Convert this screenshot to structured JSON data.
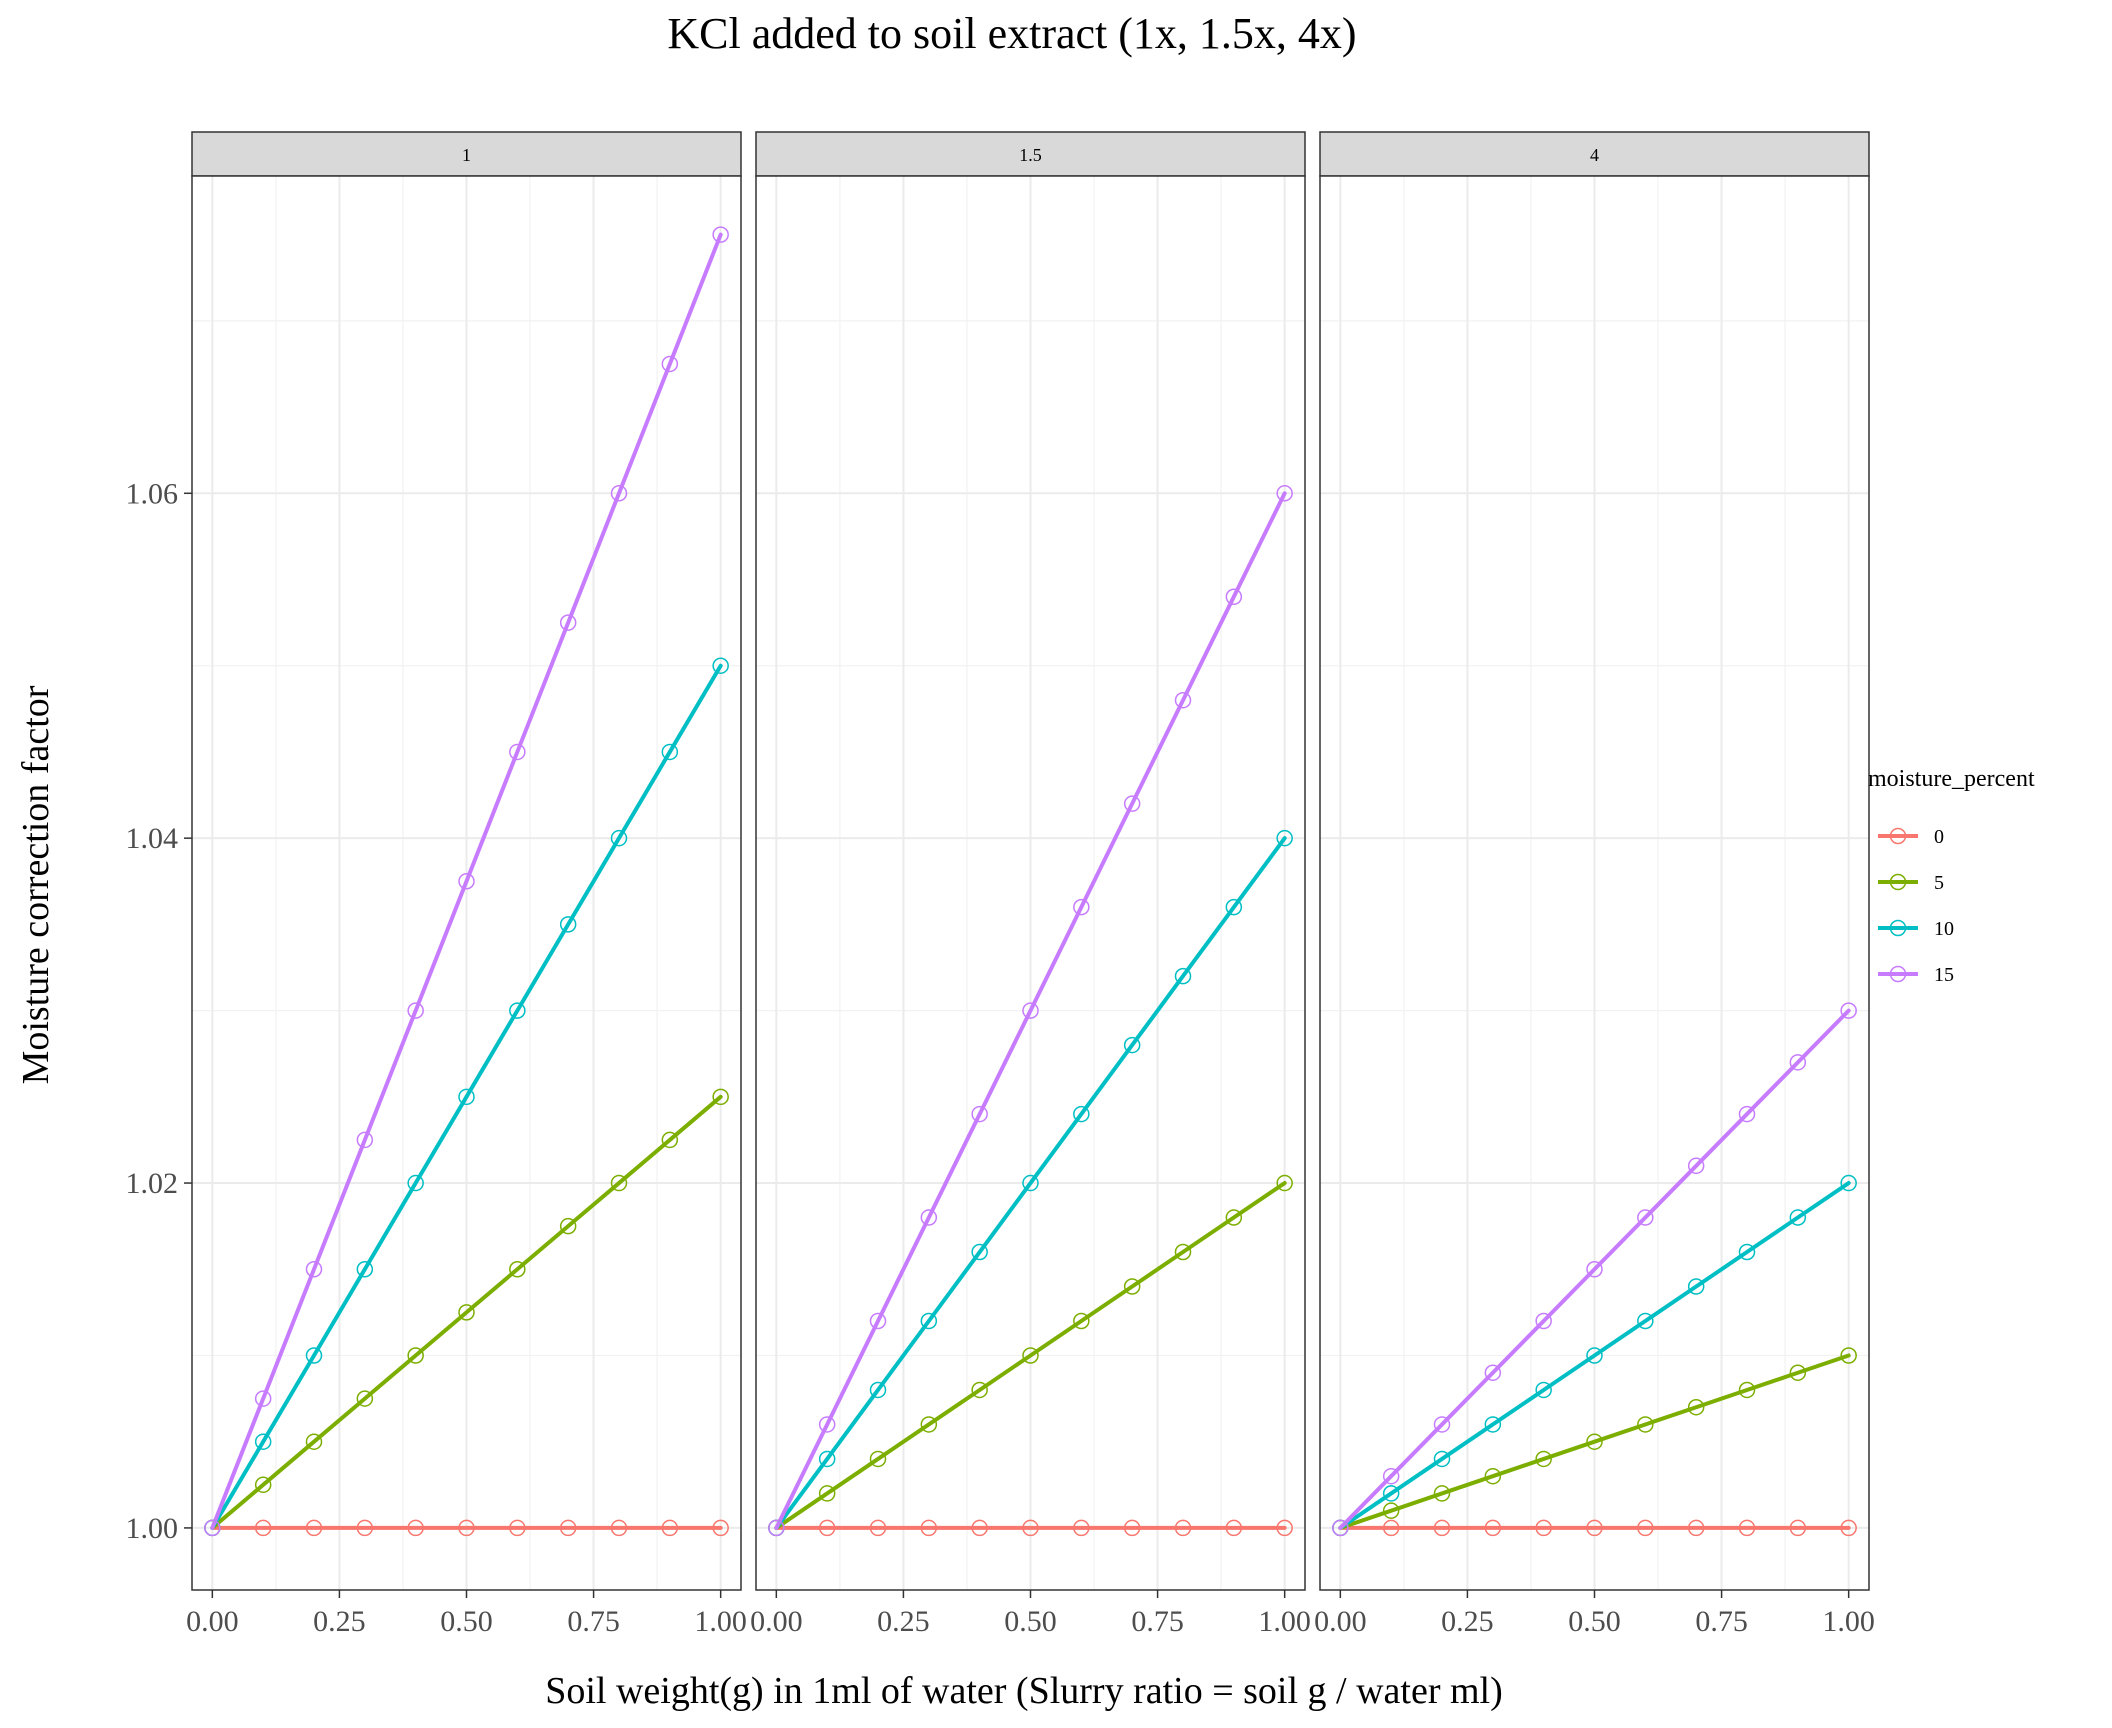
{
  "chart_data": {
    "type": "line",
    "title": "KCl added to soil extract (1x, 1.5x, 4x)",
    "xlabel": "Soil weight(g) in 1ml of water (Slurry ratio = soil g / water ml)",
    "ylabel": "Moisture correction factor",
    "x": [
      0,
      0.1,
      0.2,
      0.3,
      0.4,
      0.5,
      0.6,
      0.7,
      0.8,
      0.9,
      1.0
    ],
    "xlim": [
      -0.04,
      1.04
    ],
    "ylim": [
      0.9964,
      1.0784
    ],
    "x_ticks": [
      "0.00",
      "0.25",
      "0.50",
      "0.75",
      "1.00"
    ],
    "x_tick_values": [
      0,
      0.25,
      0.5,
      0.75,
      1.0
    ],
    "y_ticks": [
      "1.00",
      "1.02",
      "1.04",
      "1.06"
    ],
    "y_tick_values": [
      1.0,
      1.02,
      1.04,
      1.06
    ],
    "grid": true,
    "legend": {
      "title": "moisture_percent",
      "placement": "right",
      "entries": [
        "0",
        "5",
        "10",
        "15"
      ]
    },
    "colors": {
      "0": "#F8766D",
      "5": "#7CAE00",
      "10": "#00BFC4",
      "15": "#C77CFF"
    },
    "facets": [
      {
        "label": "1",
        "series": [
          {
            "name": "0",
            "values": [
              1,
              1,
              1,
              1,
              1,
              1,
              1,
              1,
              1,
              1,
              1
            ]
          },
          {
            "name": "5",
            "values": [
              1,
              1.0025,
              1.005,
              1.0075,
              1.01,
              1.0125,
              1.015,
              1.0175,
              1.02,
              1.0225,
              1.025
            ]
          },
          {
            "name": "10",
            "values": [
              1,
              1.005,
              1.01,
              1.015,
              1.02,
              1.025,
              1.03,
              1.035,
              1.04,
              1.045,
              1.05
            ]
          },
          {
            "name": "15",
            "values": [
              1,
              1.0075,
              1.015,
              1.0225,
              1.03,
              1.0375,
              1.045,
              1.0525,
              1.06,
              1.0675,
              1.075
            ]
          }
        ]
      },
      {
        "label": "1.5",
        "series": [
          {
            "name": "0",
            "values": [
              1,
              1,
              1,
              1,
              1,
              1,
              1,
              1,
              1,
              1,
              1
            ]
          },
          {
            "name": "5",
            "values": [
              1,
              1.002,
              1.004,
              1.006,
              1.008,
              1.01,
              1.012,
              1.014,
              1.016,
              1.018,
              1.02
            ]
          },
          {
            "name": "10",
            "values": [
              1,
              1.004,
              1.008,
              1.012,
              1.016,
              1.02,
              1.024,
              1.028,
              1.032,
              1.036,
              1.04
            ]
          },
          {
            "name": "15",
            "values": [
              1,
              1.006,
              1.012,
              1.018,
              1.024,
              1.03,
              1.036,
              1.042,
              1.048,
              1.054,
              1.06
            ]
          }
        ]
      },
      {
        "label": "4",
        "series": [
          {
            "name": "0",
            "values": [
              1,
              1,
              1,
              1,
              1,
              1,
              1,
              1,
              1,
              1,
              1
            ]
          },
          {
            "name": "5",
            "values": [
              1,
              1.001,
              1.002,
              1.003,
              1.004,
              1.005,
              1.006,
              1.007,
              1.008,
              1.009,
              1.01
            ]
          },
          {
            "name": "10",
            "values": [
              1,
              1.002,
              1.004,
              1.006,
              1.008,
              1.01,
              1.012,
              1.014,
              1.016,
              1.018,
              1.02
            ]
          },
          {
            "name": "15",
            "values": [
              1,
              1.003,
              1.006,
              1.009,
              1.012,
              1.015,
              1.018,
              1.021,
              1.024,
              1.027,
              1.03
            ]
          }
        ]
      }
    ]
  }
}
